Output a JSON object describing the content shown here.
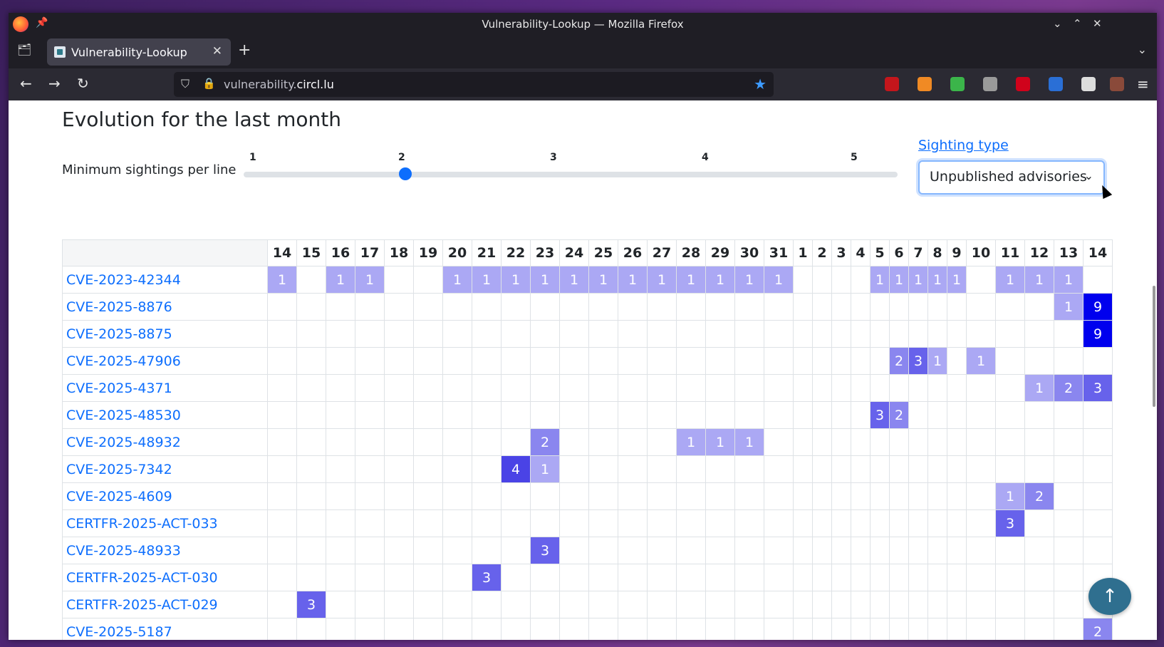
{
  "window": {
    "title": "Vulnerability-Lookup — Mozilla Firefox",
    "controls": [
      "⌄",
      "⌃",
      "✕"
    ]
  },
  "tabs": [
    {
      "label": "Vulnerability-Lookup",
      "close": "✕"
    }
  ],
  "new_tab": "+",
  "urlbar": {
    "url_prefix": "vulnerability.",
    "url_domain": "circl.lu"
  },
  "toolbar_extensions": [
    {
      "name": "ublock-icon",
      "color": "#c4161c"
    },
    {
      "name": "trash-extension-icon",
      "color": "#f08a24"
    },
    {
      "name": "sheet-extension-icon",
      "color": "#3bb54a"
    },
    {
      "name": "eye-extension-icon",
      "color": "#9a9a9a"
    },
    {
      "name": "red-extension-icon",
      "color": "#d0021b"
    },
    {
      "name": "triangle-extension-icon",
      "color": "#2a6fd6"
    },
    {
      "name": "puzzle-extensions-icon",
      "color": "#dddddd"
    },
    {
      "name": "profile-extension-icon",
      "color": "#8a4a3a"
    }
  ],
  "page": {
    "heading": "Evolution for the last month",
    "min_sightings_label": "Minimum sightings per line",
    "slider": {
      "ticks": [
        "1",
        "2",
        "3",
        "4",
        "5"
      ],
      "value": 2
    },
    "sighting_type_label": "Sighting type",
    "sighting_type_value": "Unpublished advisories",
    "scroll_top": "↑"
  },
  "heatmap": {
    "days": [
      "14",
      "15",
      "16",
      "17",
      "18",
      "19",
      "20",
      "21",
      "22",
      "23",
      "24",
      "25",
      "26",
      "27",
      "28",
      "29",
      "30",
      "31",
      "1",
      "2",
      "3",
      "4",
      "5",
      "6",
      "7",
      "8",
      "9",
      "10",
      "11",
      "12",
      "13",
      "14"
    ],
    "rows": [
      {
        "name": "CVE-2023-42344",
        "values": [
          1,
          null,
          1,
          1,
          null,
          null,
          1,
          1,
          1,
          1,
          1,
          1,
          1,
          1,
          1,
          1,
          1,
          1,
          null,
          null,
          null,
          null,
          1,
          1,
          1,
          1,
          1,
          null,
          1,
          1,
          1,
          null
        ]
      },
      {
        "name": "CVE-2025-8876",
        "values": [
          null,
          null,
          null,
          null,
          null,
          null,
          null,
          null,
          null,
          null,
          null,
          null,
          null,
          null,
          null,
          null,
          null,
          null,
          null,
          null,
          null,
          null,
          null,
          null,
          null,
          null,
          null,
          null,
          null,
          null,
          1,
          9
        ]
      },
      {
        "name": "CVE-2025-8875",
        "values": [
          null,
          null,
          null,
          null,
          null,
          null,
          null,
          null,
          null,
          null,
          null,
          null,
          null,
          null,
          null,
          null,
          null,
          null,
          null,
          null,
          null,
          null,
          null,
          null,
          null,
          null,
          null,
          null,
          null,
          null,
          null,
          9
        ]
      },
      {
        "name": "CVE-2025-47906",
        "values": [
          null,
          null,
          null,
          null,
          null,
          null,
          null,
          null,
          null,
          null,
          null,
          null,
          null,
          null,
          null,
          null,
          null,
          null,
          null,
          null,
          null,
          null,
          null,
          2,
          3,
          1,
          null,
          1,
          null,
          null,
          null,
          null
        ]
      },
      {
        "name": "CVE-2025-4371",
        "values": [
          null,
          null,
          null,
          null,
          null,
          null,
          null,
          null,
          null,
          null,
          null,
          null,
          null,
          null,
          null,
          null,
          null,
          null,
          null,
          null,
          null,
          null,
          null,
          null,
          null,
          null,
          null,
          null,
          null,
          1,
          2,
          3
        ]
      },
      {
        "name": "CVE-2025-48530",
        "values": [
          null,
          null,
          null,
          null,
          null,
          null,
          null,
          null,
          null,
          null,
          null,
          null,
          null,
          null,
          null,
          null,
          null,
          null,
          null,
          null,
          null,
          null,
          3,
          2,
          null,
          null,
          null,
          null,
          null,
          null,
          null,
          null
        ]
      },
      {
        "name": "CVE-2025-48932",
        "values": [
          null,
          null,
          null,
          null,
          null,
          null,
          null,
          null,
          null,
          2,
          null,
          null,
          null,
          null,
          1,
          1,
          1,
          null,
          null,
          null,
          null,
          null,
          null,
          null,
          null,
          null,
          null,
          null,
          null,
          null,
          null,
          null
        ]
      },
      {
        "name": "CVE-2025-7342",
        "values": [
          null,
          null,
          null,
          null,
          null,
          null,
          null,
          null,
          4,
          1,
          null,
          null,
          null,
          null,
          null,
          null,
          null,
          null,
          null,
          null,
          null,
          null,
          null,
          null,
          null,
          null,
          null,
          null,
          null,
          null,
          null,
          null
        ]
      },
      {
        "name": "CVE-2025-4609",
        "values": [
          null,
          null,
          null,
          null,
          null,
          null,
          null,
          null,
          null,
          null,
          null,
          null,
          null,
          null,
          null,
          null,
          null,
          null,
          null,
          null,
          null,
          null,
          null,
          null,
          null,
          null,
          null,
          null,
          1,
          2,
          null,
          null
        ]
      },
      {
        "name": "CERTFR-2025-ACT-033",
        "values": [
          null,
          null,
          null,
          null,
          null,
          null,
          null,
          null,
          null,
          null,
          null,
          null,
          null,
          null,
          null,
          null,
          null,
          null,
          null,
          null,
          null,
          null,
          null,
          null,
          null,
          null,
          null,
          null,
          3,
          null,
          null,
          null
        ]
      },
      {
        "name": "CVE-2025-48933",
        "values": [
          null,
          null,
          null,
          null,
          null,
          null,
          null,
          null,
          null,
          3,
          null,
          null,
          null,
          null,
          null,
          null,
          null,
          null,
          null,
          null,
          null,
          null,
          null,
          null,
          null,
          null,
          null,
          null,
          null,
          null,
          null,
          null
        ]
      },
      {
        "name": "CERTFR-2025-ACT-030",
        "values": [
          null,
          null,
          null,
          null,
          null,
          null,
          null,
          3,
          null,
          null,
          null,
          null,
          null,
          null,
          null,
          null,
          null,
          null,
          null,
          null,
          null,
          null,
          null,
          null,
          null,
          null,
          null,
          null,
          null,
          null,
          null,
          null
        ]
      },
      {
        "name": "CERTFR-2025-ACT-029",
        "values": [
          null,
          3,
          null,
          null,
          null,
          null,
          null,
          null,
          null,
          null,
          null,
          null,
          null,
          null,
          null,
          null,
          null,
          null,
          null,
          null,
          null,
          null,
          null,
          null,
          null,
          null,
          null,
          null,
          null,
          null,
          null,
          null
        ]
      },
      {
        "name": "CVE-2025-5187",
        "values": [
          null,
          null,
          null,
          null,
          null,
          null,
          null,
          null,
          null,
          null,
          null,
          null,
          null,
          null,
          null,
          null,
          null,
          null,
          null,
          null,
          null,
          null,
          null,
          null,
          null,
          null,
          null,
          null,
          null,
          null,
          null,
          2
        ]
      }
    ],
    "colors": {
      "1": "#aba8f4",
      "2": "#8a86ef",
      "3": "#6762eb",
      "4": "#4a43e6",
      "9": "#0000ee"
    }
  }
}
